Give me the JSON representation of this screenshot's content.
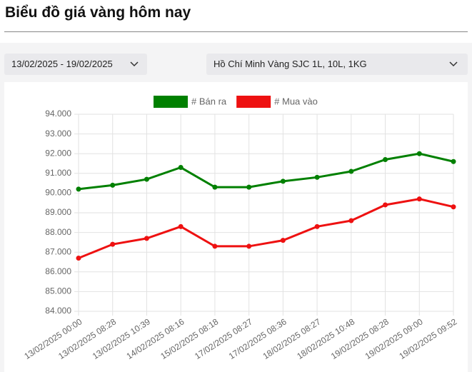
{
  "header": {
    "title": "Biểu đồ giá vàng hôm nay"
  },
  "filters": {
    "date_range": "13/02/2025 - 19/02/2025",
    "product": "Hồ Chí Minh Vàng SJC 1L, 10L, 1KG"
  },
  "chart_data": {
    "type": "line",
    "categories": [
      "13/02/2025 00:00",
      "13/02/2025 08:28",
      "13/02/2025 10:39",
      "14/02/2025 08:16",
      "15/02/2025 08:18",
      "17/02/2025 08:27",
      "17/02/2025 08:36",
      "18/02/2025 08:27",
      "18/02/2025 10:48",
      "19/02/2025 08:28",
      "19/02/2025 09:00",
      "19/02/2025 09:52"
    ],
    "series": [
      {
        "name": "# Bán ra",
        "color": "#008000",
        "values": [
          90200,
          90400,
          90700,
          91300,
          90300,
          90300,
          90600,
          90800,
          91100,
          91700,
          92000,
          91600
        ]
      },
      {
        "name": "# Mua vào",
        "color": "#ee1111",
        "values": [
          86700,
          87400,
          87700,
          88300,
          87300,
          87300,
          87600,
          88300,
          88600,
          89400,
          89700,
          89300
        ]
      }
    ],
    "ylim": [
      84000,
      94000
    ],
    "yticks": [
      {
        "value": 84000,
        "label": "84.000"
      },
      {
        "value": 85000,
        "label": "85.000"
      },
      {
        "value": 86000,
        "label": "86.000"
      },
      {
        "value": 87000,
        "label": "87.000"
      },
      {
        "value": 88000,
        "label": "88.000"
      },
      {
        "value": 89000,
        "label": "89.000"
      },
      {
        "value": 90000,
        "label": "90.000"
      },
      {
        "value": 91000,
        "label": "91.000"
      },
      {
        "value": 92000,
        "label": "92.000"
      },
      {
        "value": 93000,
        "label": "93.000"
      },
      {
        "value": 94000,
        "label": "94.000"
      }
    ],
    "grid": true
  }
}
